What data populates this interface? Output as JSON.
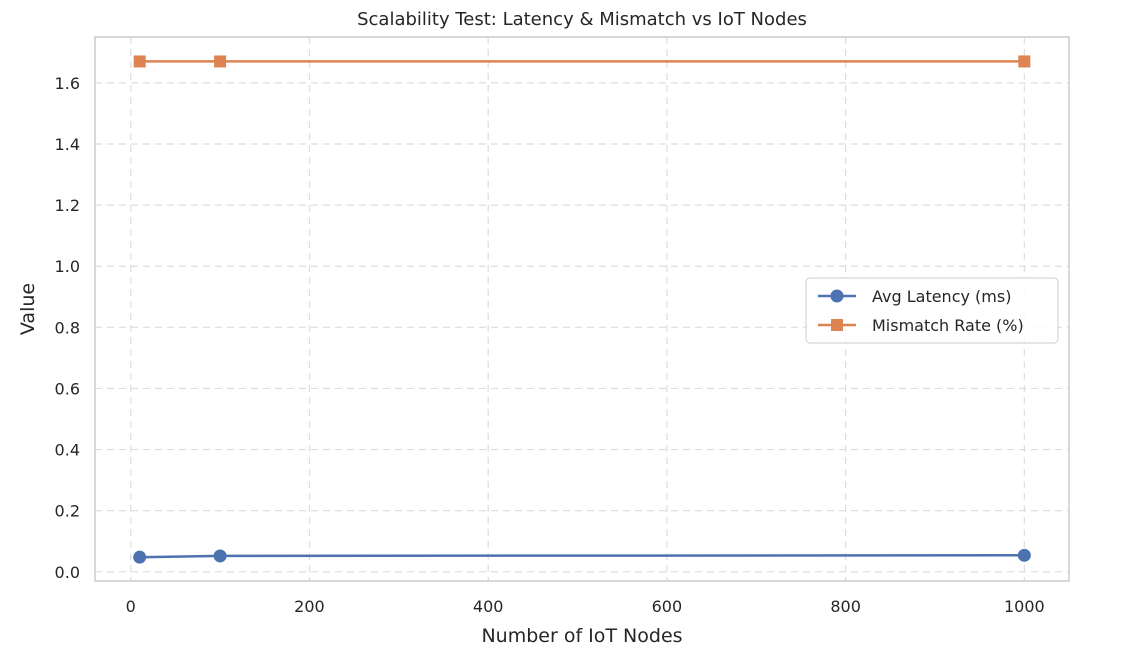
{
  "chart_data": {
    "type": "line",
    "title": "Scalability Test: Latency & Mismatch vs IoT Nodes",
    "xlabel": "Number of IoT Nodes",
    "ylabel": "Value",
    "xlim": [
      -40,
      1050
    ],
    "ylim": [
      -0.03,
      1.75
    ],
    "xticks": [
      0,
      200,
      400,
      600,
      800,
      1000
    ],
    "yticks": [
      0.0,
      0.2,
      0.4,
      0.6,
      0.8,
      1.0,
      1.2,
      1.4,
      1.6
    ],
    "grid": true,
    "legend_position": "center-right",
    "series": [
      {
        "name": "Avg Latency (ms)",
        "color": "#4c72b0",
        "marker": "circle",
        "x": [
          10,
          100,
          1000
        ],
        "y": [
          0.048,
          0.052,
          0.054
        ]
      },
      {
        "name": "Mismatch Rate (%)",
        "color": "#dd8452",
        "marker": "square",
        "x": [
          10,
          100,
          1000
        ],
        "y": [
          1.67,
          1.67,
          1.67
        ]
      }
    ]
  }
}
